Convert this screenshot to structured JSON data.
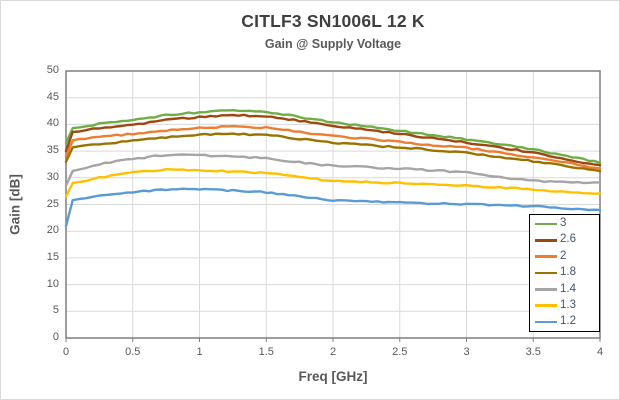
{
  "chart_data": {
    "type": "line",
    "title": "CITLF3 SN1006L 12 K",
    "subtitle": "Gain @ Supply Voltage",
    "xlabel": "Freq [GHz]",
    "ylabel": "Gain [dB]",
    "xlim": [
      0,
      4
    ],
    "ylim": [
      0,
      50
    ],
    "x_ticks": [
      0,
      0.5,
      1,
      1.5,
      2,
      2.5,
      3,
      3.5,
      4
    ],
    "y_ticks": [
      0,
      5,
      10,
      15,
      20,
      25,
      30,
      35,
      40,
      45,
      50
    ],
    "grid": true,
    "legend_position": "inside-bottom-right",
    "x": [
      0,
      0.05,
      0.25,
      0.5,
      0.75,
      1,
      1.25,
      1.5,
      1.75,
      2,
      2.25,
      2.5,
      2.75,
      3,
      3.25,
      3.5,
      3.75,
      4
    ],
    "series": [
      {
        "name": "3",
        "color": "#70AD47",
        "values": [
          36.5,
          39.3,
          40.1,
          40.8,
          41.7,
          42.3,
          42.7,
          42.4,
          41.4,
          40.4,
          39.6,
          38.8,
          38.0,
          37.2,
          36.3,
          35.3,
          34.1,
          32.8
        ]
      },
      {
        "name": "2.6",
        "color": "#9E480E",
        "values": [
          35.0,
          38.6,
          39.3,
          39.9,
          40.8,
          41.4,
          41.8,
          41.5,
          40.7,
          39.8,
          39.0,
          38.2,
          37.4,
          36.6,
          35.7,
          34.7,
          33.5,
          32.3
        ]
      },
      {
        "name": "2",
        "color": "#ED7D31",
        "values": [
          34.0,
          37.0,
          37.7,
          38.2,
          38.9,
          39.4,
          39.6,
          39.4,
          38.6,
          37.8,
          37.3,
          36.7,
          36.1,
          35.6,
          34.7,
          33.8,
          32.8,
          31.7
        ]
      },
      {
        "name": "1.8",
        "color": "#997300",
        "values": [
          33.0,
          35.7,
          36.3,
          36.9,
          37.6,
          38.1,
          38.2,
          38.0,
          37.3,
          36.6,
          36.1,
          35.7,
          35.2,
          34.7,
          33.9,
          33.1,
          32.2,
          31.2
        ]
      },
      {
        "name": "1.4",
        "color": "#A5A5A5",
        "values": [
          28.5,
          31.3,
          32.6,
          33.5,
          34.3,
          34.2,
          34.0,
          33.7,
          32.9,
          32.2,
          32.0,
          31.7,
          31.4,
          31.0,
          30.2,
          29.4,
          29.2,
          29.0
        ]
      },
      {
        "name": "1.3",
        "color": "#FFC000",
        "values": [
          26.5,
          29.0,
          30.0,
          31.0,
          31.5,
          31.4,
          31.2,
          30.9,
          30.1,
          29.4,
          29.2,
          29.0,
          28.8,
          28.5,
          28.2,
          27.8,
          27.3,
          26.9
        ]
      },
      {
        "name": "1.2",
        "color": "#5B9BD5",
        "values": [
          21.0,
          25.8,
          26.8,
          27.3,
          27.8,
          27.9,
          27.6,
          27.3,
          26.5,
          25.7,
          25.6,
          25.4,
          25.2,
          25.0,
          24.9,
          24.7,
          24.3,
          23.9
        ]
      }
    ],
    "colors": {
      "gridline": "#d9d9d9",
      "plot_border": "#7f7f7f",
      "title_text": "#3f3f3f",
      "axis_text": "#595959",
      "legend_text": "#44546a"
    }
  }
}
